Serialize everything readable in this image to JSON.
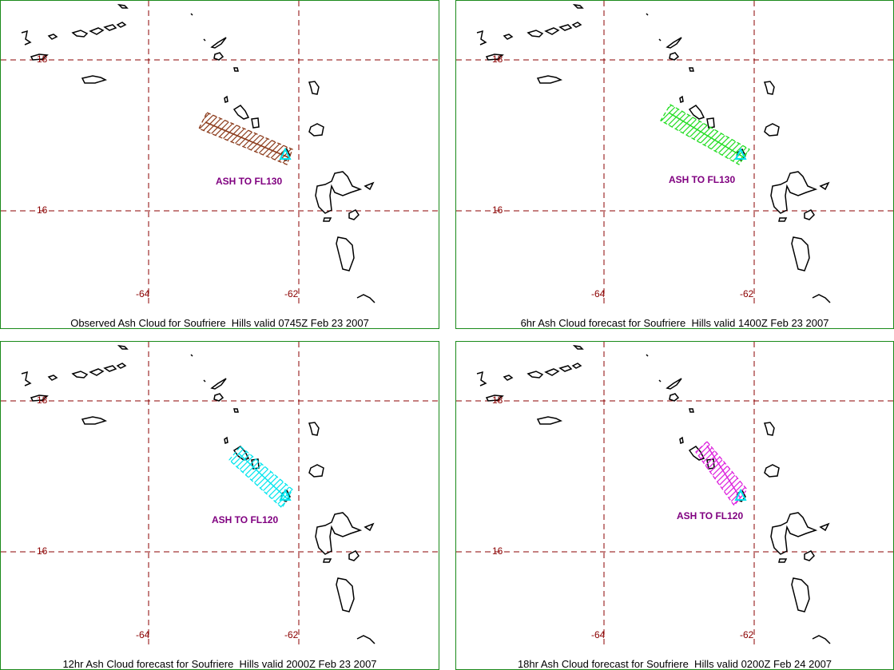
{
  "grid": {
    "lat_labels": [
      "18",
      "16"
    ],
    "lon_labels": [
      "-64",
      "-62"
    ],
    "grid_color": "#8b0000"
  },
  "panels": [
    {
      "caption": "Observed Ash Cloud for Soufriere  Hills valid 0745Z Feb 23 2007",
      "ash_label": "ASH TO FL130",
      "cloud_color": "#8b3a1a",
      "volcano_color": "#00e5ee"
    },
    {
      "caption": "6hr Ash Cloud forecast for Soufriere  Hills valid 1400Z Feb 23 2007",
      "ash_label": "ASH TO FL130",
      "cloud_color": "#22dd22",
      "volcano_color": "#00e5ee"
    },
    {
      "caption": "12hr Ash Cloud forecast for Soufriere  Hills valid 2000Z Feb 23 2007",
      "ash_label": "ASH TO FL120",
      "cloud_color": "#00e5ee",
      "volcano_color": "#00e5ee"
    },
    {
      "caption": "18hr Ash Cloud forecast for Soufriere  Hills valid 0200Z Feb 24 2007",
      "ash_label": "ASH TO FL120",
      "cloud_color": "#dd22dd",
      "volcano_color": "#00e5ee"
    }
  ]
}
